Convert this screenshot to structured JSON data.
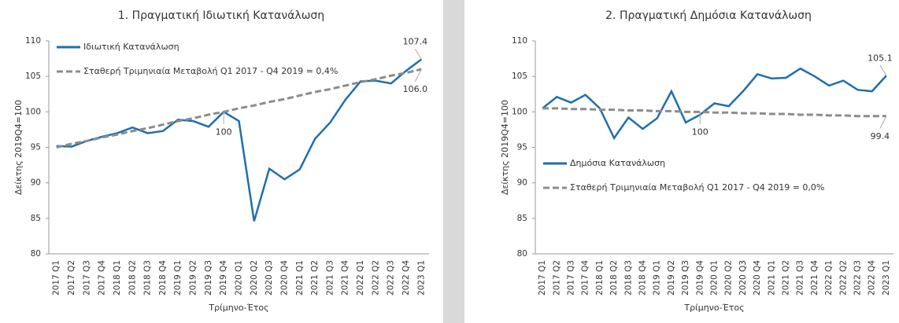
{
  "chart_data": [
    {
      "type": "line",
      "title": "1. Πραγματική Ιδιωτική Κατανάλωση",
      "y_label": "Δείκτης 2019Q4=100",
      "x_label": "Τρίμηνο-Έτος",
      "legend": "upper left",
      "categories": [
        "2017 Q1",
        "2017 Q2",
        "2017 Q3",
        "2017 Q4",
        "2018 Q1",
        "2018 Q2",
        "2018 Q3",
        "2018 Q4",
        "2019 Q1",
        "2019 Q2",
        "2019 Q3",
        "2019 Q4",
        "2020 Q1",
        "2020 Q2",
        "2020 Q3",
        "2020 Q4",
        "2021 Q1",
        "2021 Q2",
        "2021 Q3",
        "2021 Q4",
        "2022 Q1",
        "2022 Q2",
        "2022 Q3",
        "2022 Q4",
        "2023 Q1"
      ],
      "ylim": [
        80,
        110
      ],
      "yticks": [
        80,
        85,
        90,
        95,
        100,
        105,
        110
      ],
      "series": [
        {
          "name": "Ιδιωτική Κατανάλωση",
          "color": "#1f6eb0",
          "dashed": false,
          "values": [
            95.2,
            95.1,
            95.9,
            96.5,
            97.0,
            97.8,
            97.0,
            97.3,
            98.9,
            98.7,
            97.9,
            100.0,
            98.7,
            84.6,
            92.0,
            90.5,
            91.9,
            96.2,
            98.5,
            101.7,
            104.3,
            104.4,
            104.0,
            105.8,
            107.4
          ],
          "value_labels": [
            null,
            null,
            null,
            null,
            null,
            null,
            null,
            null,
            null,
            null,
            null,
            null,
            null,
            null,
            null,
            null,
            null,
            null,
            null,
            null,
            null,
            null,
            null,
            null,
            "107.4"
          ]
        },
        {
          "name": "Σταθερή Τριμηνιαία Μεταβολή Q1 2017 - Q4 2019 = 0,4%",
          "color": "#8c8c8c",
          "dashed": true,
          "values": [
            95.0,
            95.5,
            95.9,
            96.4,
            96.8,
            97.3,
            97.7,
            98.2,
            98.7,
            99.1,
            99.6,
            100.0,
            100.5,
            100.9,
            101.4,
            101.8,
            102.3,
            102.8,
            103.2,
            103.7,
            104.2,
            104.6,
            105.1,
            105.5,
            106.0
          ],
          "value_labels": [
            null,
            null,
            null,
            null,
            null,
            null,
            null,
            null,
            null,
            null,
            null,
            "100",
            null,
            null,
            null,
            null,
            null,
            null,
            null,
            null,
            null,
            null,
            null,
            null,
            "106.0"
          ]
        }
      ]
    },
    {
      "type": "line",
      "title": "2. Πραγματική Δημόσια Κατανάλωση",
      "y_label": "Δείκτης 2019Q4=100",
      "x_label": "Τρίμηνο-Έτος",
      "legend": "center left",
      "categories": [
        "2017 Q1",
        "2017 Q2",
        "2017 Q3",
        "2017 Q4",
        "2018 Q1",
        "2018 Q2",
        "2018 Q3",
        "2018 Q4",
        "2019 Q1",
        "2019 Q2",
        "2019 Q3",
        "2019 Q4",
        "2020 Q1",
        "2020 Q2",
        "2020 Q3",
        "2020 Q4",
        "2021 Q1",
        "2021 Q2",
        "2021 Q3",
        "2021 Q4",
        "2022 Q1",
        "2022 Q2",
        "2022 Q3",
        "2022 Q4",
        "2023 Q1"
      ],
      "ylim": [
        80,
        110
      ],
      "yticks": [
        80,
        85,
        90,
        95,
        100,
        105,
        110
      ],
      "series": [
        {
          "name": "Δημόσια Κατανάλωση",
          "color": "#1f6eb0",
          "dashed": false,
          "values": [
            100.5,
            102.1,
            101.3,
            102.4,
            100.5,
            96.3,
            99.2,
            97.6,
            99.1,
            102.9,
            98.5,
            99.6,
            101.2,
            100.8,
            102.9,
            105.3,
            104.7,
            104.8,
            106.1,
            105.0,
            103.7,
            104.4,
            103.1,
            102.9,
            105.1
          ],
          "value_labels": [
            null,
            null,
            null,
            null,
            null,
            null,
            null,
            null,
            null,
            null,
            null,
            null,
            null,
            null,
            null,
            null,
            null,
            null,
            null,
            null,
            null,
            null,
            null,
            null,
            "105.1"
          ]
        },
        {
          "name": "Σταθερή Τριμηνιαία Μεταβολή Q1 2017 - Q4 2019 = 0,0%",
          "color": "#8c8c8c",
          "dashed": true,
          "values": [
            100.5,
            100.5,
            100.4,
            100.4,
            100.3,
            100.3,
            100.2,
            100.2,
            100.1,
            100.1,
            100.0,
            100.0,
            99.9,
            99.9,
            99.8,
            99.8,
            99.7,
            99.7,
            99.6,
            99.6,
            99.5,
            99.5,
            99.4,
            99.4,
            99.4
          ],
          "value_labels": [
            null,
            null,
            null,
            null,
            null,
            null,
            null,
            null,
            null,
            null,
            null,
            "100",
            null,
            null,
            null,
            null,
            null,
            null,
            null,
            null,
            null,
            null,
            null,
            null,
            "99.4"
          ]
        }
      ]
    }
  ]
}
